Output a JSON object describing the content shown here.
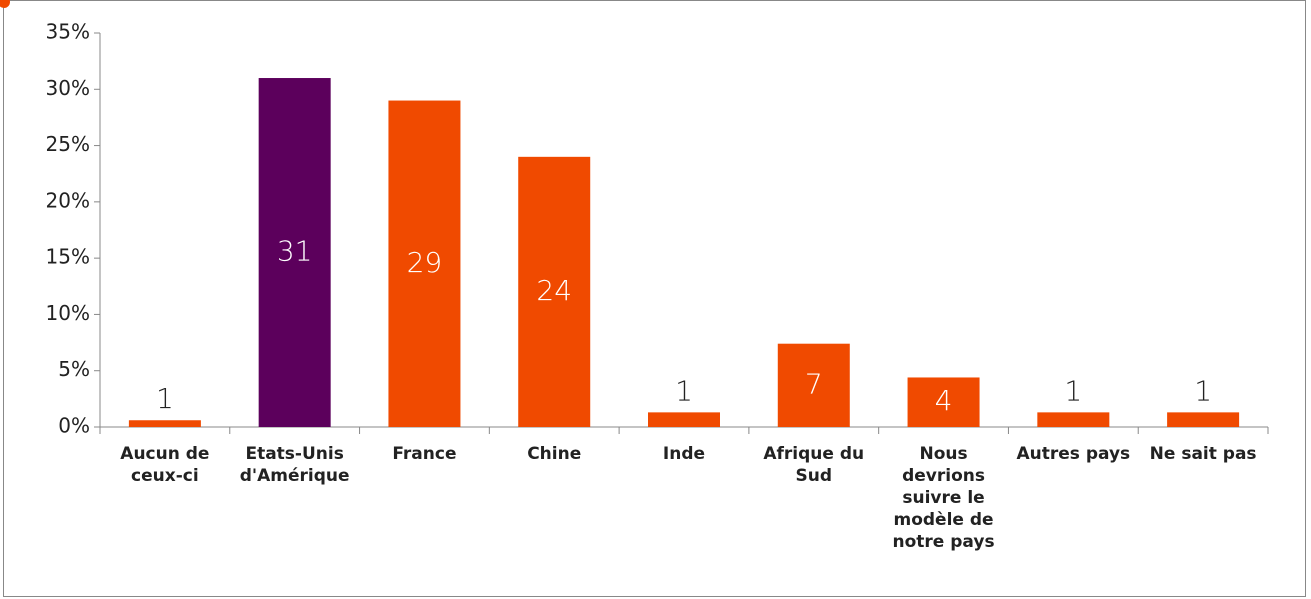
{
  "chart_data": {
    "type": "bar",
    "categories": [
      "Aucun de ceux-ci",
      "Etats-Unis d'Amérique",
      "France",
      "Chine",
      "Inde",
      "Afrique du Sud",
      "Nous devrions suivre le modèle de notre pays",
      "Autres pays",
      "Ne sait pas"
    ],
    "values": [
      0.6,
      31,
      29,
      24,
      1.3,
      7.4,
      4.4,
      1.3,
      1.3
    ],
    "value_labels": [
      "1",
      "31",
      "29",
      "24",
      "1",
      "7",
      "4",
      "1",
      "1"
    ],
    "colors": [
      "#f04a00",
      "#5c005c",
      "#f04a00",
      "#f04a00",
      "#f04a00",
      "#f04a00",
      "#f04a00",
      "#f04a00",
      "#f04a00"
    ],
    "ylim": [
      0,
      35
    ],
    "yticks": [
      {
        "value": 0,
        "label": "0%"
      },
      {
        "value": 5,
        "label": "5%"
      },
      {
        "value": 10,
        "label": "10%"
      },
      {
        "value": 15,
        "label": "15%"
      },
      {
        "value": 20,
        "label": "20%"
      },
      {
        "value": 25,
        "label": "25%"
      },
      {
        "value": 30,
        "label": "30%"
      },
      {
        "value": 35,
        "label": "35%"
      }
    ]
  }
}
